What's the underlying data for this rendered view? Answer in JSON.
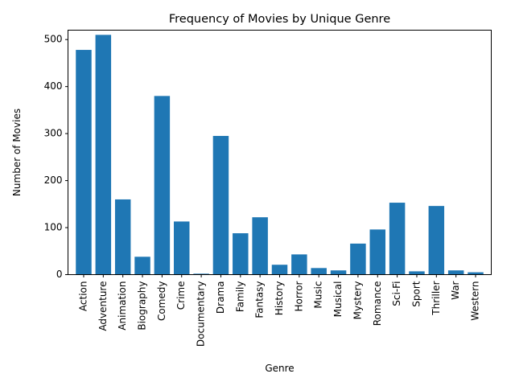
{
  "chart_data": {
    "type": "bar",
    "title": "Frequency of Movies by Unique Genre",
    "xlabel": "Genre",
    "ylabel": "Number of Movies",
    "ylim": [
      0,
      520
    ],
    "yticks": [
      0,
      100,
      200,
      300,
      400,
      500
    ],
    "grid": false,
    "bar_color": "#1f77b4",
    "categories": [
      "Action",
      "Adventure",
      "Animation",
      "Biography",
      "Comedy",
      "Crime",
      "Documentary",
      "Drama",
      "Family",
      "Fantasy",
      "History",
      "Horror",
      "Music",
      "Musical",
      "Mystery",
      "Romance",
      "Sci-Fi",
      "Sport",
      "Thriller",
      "War",
      "Western"
    ],
    "values": [
      478,
      510,
      160,
      38,
      380,
      113,
      2,
      295,
      88,
      122,
      21,
      43,
      14,
      9,
      66,
      96,
      153,
      7,
      146,
      9,
      5
    ]
  }
}
